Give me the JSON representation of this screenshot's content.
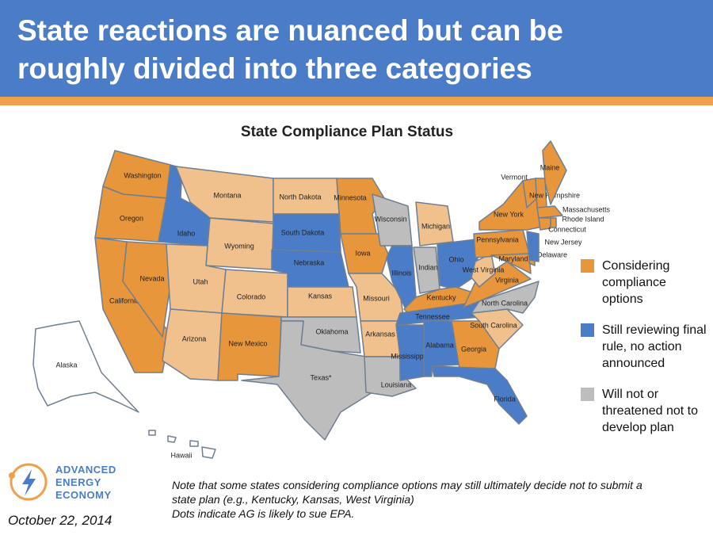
{
  "header": {
    "title_lines": [
      "State reactions are nuanced but can be",
      "roughly divided into three categories"
    ]
  },
  "map": {
    "title": "State Compliance Plan Status",
    "states": [
      {
        "label": "Washington",
        "fill": "#E8963C"
      },
      {
        "label": "Oregon",
        "fill": "#E8963C"
      },
      {
        "label": "California",
        "fill": "#E8963C"
      },
      {
        "label": "Nevada",
        "fill": "#E8963C"
      },
      {
        "label": "Idaho",
        "fill": "#4A7CC7"
      },
      {
        "label": "Montana",
        "fill": "#F0C18C"
      },
      {
        "label": "Wyoming",
        "fill": "#F0C18C"
      },
      {
        "label": "Utah",
        "fill": "#F0C18C"
      },
      {
        "label": "Colorado",
        "fill": "#F0C18C"
      },
      {
        "label": "Arizona",
        "fill": "#F0C18C"
      },
      {
        "label": "New Mexico",
        "fill": "#E8963C"
      },
      {
        "label": "North Dakota",
        "fill": "#F0C18C"
      },
      {
        "label": "South Dakota",
        "fill": "#4A7CC7"
      },
      {
        "label": "Nebraska",
        "fill": "#4A7CC7"
      },
      {
        "label": "Kansas",
        "fill": "#F0C18C"
      },
      {
        "label": "Oklahoma",
        "fill": "#BDBDBD"
      },
      {
        "label": "Texas*",
        "fill": "#BDBDBD"
      },
      {
        "label": "Minnesota",
        "fill": "#E8963C"
      },
      {
        "label": "Iowa",
        "fill": "#E8963C"
      },
      {
        "label": "Missouri",
        "fill": "#F0C18C"
      },
      {
        "label": "Arkansas",
        "fill": "#F0C18C"
      },
      {
        "label": "Louisiana",
        "fill": "#BDBDBD"
      },
      {
        "label": "Wisconsin",
        "fill": "#BDBDBD"
      },
      {
        "label": "Illinois",
        "fill": "#4A7CC7"
      },
      {
        "label": "Michigan",
        "fill": "#F0C18C"
      },
      {
        "label": "Indiana",
        "fill": "#BDBDBD"
      },
      {
        "label": "Ohio",
        "fill": "#4A7CC7"
      },
      {
        "label": "Kentucky",
        "fill": "#E8963C"
      },
      {
        "label": "Tennessee",
        "fill": "#4A7CC7"
      },
      {
        "label": "Mississippi",
        "fill": "#4A7CC7"
      },
      {
        "label": "Alabama",
        "fill": "#4A7CC7"
      },
      {
        "label": "Georgia",
        "fill": "#E8963C"
      },
      {
        "label": "Florida",
        "fill": "#4A7CC7"
      },
      {
        "label": "South Carolina",
        "fill": "#F0C18C"
      },
      {
        "label": "North Carolina",
        "fill": "#BDBDBD"
      },
      {
        "label": "Virginia",
        "fill": "#E8963C"
      },
      {
        "label": "West Virginia",
        "fill": "#F0C18C"
      },
      {
        "label": "Pennsylvania",
        "fill": "#E8963C"
      },
      {
        "label": "New York",
        "fill": "#E8963C"
      },
      {
        "label": "Maryland",
        "fill": "#E8963C"
      },
      {
        "label": "Delaware",
        "fill": "#E8963C"
      },
      {
        "label": "New Jersey",
        "fill": "#4A7CC7"
      },
      {
        "label": "Vermont",
        "fill": "#E8963C"
      },
      {
        "label": "New Hampshire",
        "fill": "#E8963C"
      },
      {
        "label": "Maine",
        "fill": "#E8963C"
      },
      {
        "label": "Massachusetts",
        "fill": "#E8963C"
      },
      {
        "label": "Connecticut",
        "fill": "#E8963C"
      },
      {
        "label": "Rhode Island",
        "fill": "#E8963C"
      },
      {
        "label": "Alaska",
        "fill": "#FFFFFF"
      },
      {
        "label": "Hawaii",
        "fill": "#FFFFFF"
      }
    ]
  },
  "legend": [
    {
      "label": "Considering compliance options",
      "color": "#E8963C"
    },
    {
      "label": "Still reviewing final rule, no action announced",
      "color": "#4A7CC7"
    },
    {
      "label": "Will not or threatened not to develop plan",
      "color": "#BDBDBD"
    }
  ],
  "note_lines": [
    "Note that some states considering compliance options may still ultimately decide not to submit a",
    "state plan (e.g., Kentucky, Kansas, West Virginia)",
    "Dots indicate AG is likely to sue EPA."
  ],
  "logo_lines": [
    "ADVANCED",
    "ENERGY",
    "ECONOMY"
  ],
  "date": "October 22, 2014"
}
